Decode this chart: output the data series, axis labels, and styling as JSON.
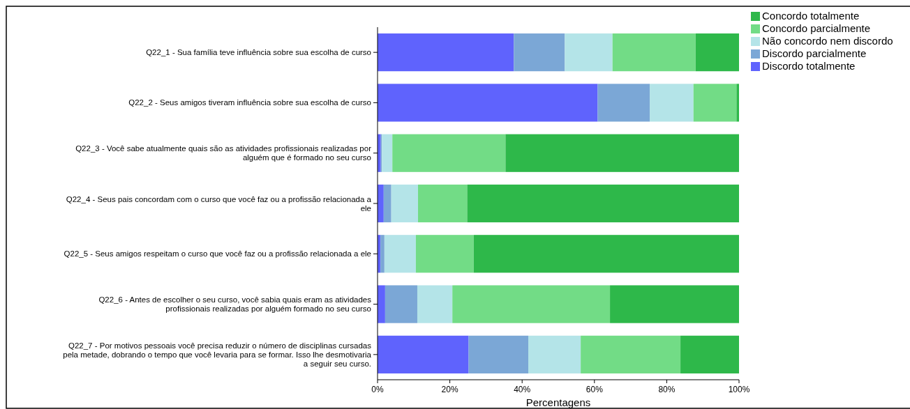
{
  "chart_data": {
    "type": "bar",
    "orientation": "horizontal",
    "stacked": true,
    "xlabel": "Percentagens",
    "categories": [
      "Q22_1 - Sua família teve influência sobre sua escolha de curso",
      "Q22_2 - Seus amigos tiveram influência sobre sua escolha de curso",
      "Q22_3 - Você sabe atualmente quais são as atividades profissionais realizadas por\nalguém que é formado no seu curso",
      "Q22_4 - Seus pais concordam com o curso que você faz ou a profissão relacionada a\nele",
      "Q22_5 - Seus amigos respeitam o curso que você faz ou a profissão relacionada a ele",
      "Q22_6 - Antes de escolher o seu curso, você sabia quais eram as atividades\nprofissionais realizadas por alguém formado no seu curso",
      "Q22_7 - Por motivos pessoais você precisa reduzir o número de disciplinas cursadas\npela metade, dobrando o tempo que você levaria para se formar. Isso lhe desmotivaria\na seguir seu curso."
    ],
    "series": [
      {
        "name": "Discordo totalmente",
        "color": "#5f63fd",
        "values": [
          37.7,
          60.9,
          0.9,
          1.7,
          0.8,
          2.1,
          25.2
        ]
      },
      {
        "name": "Discordo parcialmente",
        "color": "#7ba7d6",
        "values": [
          14.1,
          14.4,
          0.3,
          2.1,
          1.1,
          8.9,
          16.5
        ]
      },
      {
        "name": "Não concordo nem discordo",
        "color": "#b4e4e8",
        "values": [
          13.2,
          12.1,
          2.9,
          7.4,
          8.7,
          9.7,
          14.5
        ]
      },
      {
        "name": "Concordo parcialmente",
        "color": "#72dc86",
        "values": [
          23.0,
          11.9,
          31.3,
          13.6,
          16.0,
          43.6,
          27.6
        ]
      },
      {
        "name": "Concordo totalmente",
        "color": "#2eb84a",
        "values": [
          12.0,
          0.7,
          64.6,
          75.2,
          73.4,
          35.7,
          16.2
        ]
      }
    ],
    "xlim": [
      0,
      100
    ],
    "xticks": [
      {
        "value": 0,
        "label": "0%"
      },
      {
        "value": 20,
        "label": "20%"
      },
      {
        "value": 40,
        "label": "40%"
      },
      {
        "value": 60,
        "label": "60%"
      },
      {
        "value": 80,
        "label": "80%"
      },
      {
        "value": 100,
        "label": "100%"
      }
    ],
    "legend": "right",
    "grid": false
  }
}
